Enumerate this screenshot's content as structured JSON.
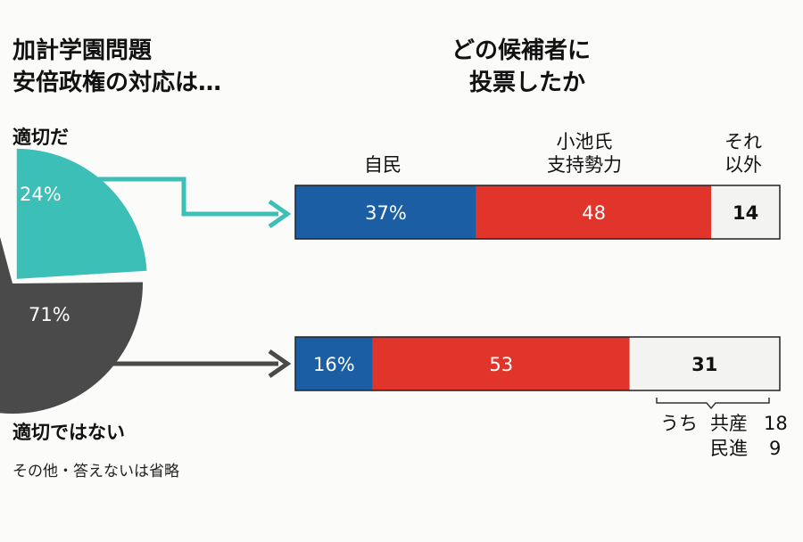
{
  "left_title": [
    "加計学園問題",
    "安倍政権の対応は…"
  ],
  "right_title": [
    "どの候補者に",
    "投票したか"
  ],
  "colors": {
    "teal": "#3cbfb6",
    "gray": "#4a4a4a",
    "jimin": "#1b5ea3",
    "koike": "#e1352b",
    "other": "#f3f3f1",
    "border": "#222222"
  },
  "chart_data": [
    {
      "type": "pie",
      "labels": [
        "適切だ",
        "適切ではない"
      ],
      "values": [
        24,
        71
      ],
      "value_labels": [
        "24%",
        "71%"
      ],
      "note": "その他・答えないは省略"
    },
    {
      "type": "bar",
      "stacked": true,
      "orientation": "horizontal",
      "series_labels": [
        [
          "自民"
        ],
        [
          "小池氏",
          "支持勢力"
        ],
        [
          "それ",
          "以外"
        ]
      ],
      "rows": [
        {
          "group": "適切だ",
          "values": [
            37,
            48,
            14
          ],
          "value_labels": [
            "37%",
            "48",
            "14"
          ]
        },
        {
          "group": "適切ではない",
          "values": [
            16,
            53,
            31
          ],
          "value_labels": [
            "16%",
            "53",
            "31"
          ]
        }
      ],
      "breakdown": [
        {
          "prefix": "うち",
          "party": "共産",
          "value": "18"
        },
        {
          "prefix": "",
          "party": "民進",
          "value": "9"
        }
      ]
    }
  ]
}
